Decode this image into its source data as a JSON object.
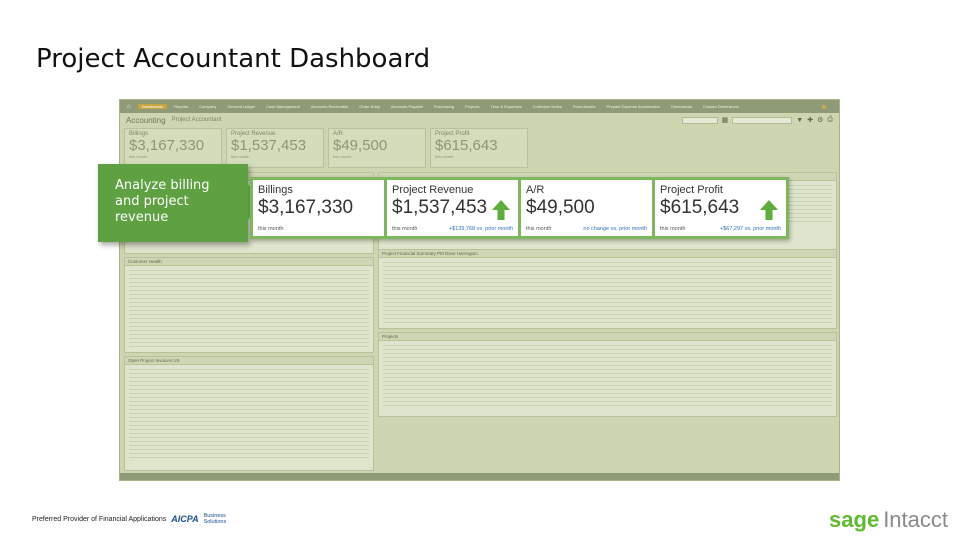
{
  "slide": {
    "title": "Project Accountant Dashboard"
  },
  "nav": {
    "home_icon": "home-icon",
    "items": [
      "Dashboards",
      "Reports",
      "Company",
      "General Ledger",
      "Cash Management",
      "Accounts Receivable",
      "Order Entry",
      "Accounts Payable",
      "Purchasing",
      "Projects",
      "Time & Expenses",
      "Collection Notes",
      "Fixed Assets",
      "Prepaid Expense Amortization",
      "Dimensions",
      "Custom Dimensions"
    ],
    "active_index": 0
  },
  "header": {
    "app": "Accounting",
    "role": "Project Accountant"
  },
  "bg_tiles": [
    {
      "label": "Billings",
      "value": "$3,167,330",
      "sub": "this month"
    },
    {
      "label": "Project Revenue",
      "value": "$1,537,453",
      "sub": "this month"
    },
    {
      "label": "A/R",
      "value": "$49,500",
      "sub": "this month"
    },
    {
      "label": "Project Profit",
      "value": "$615,643",
      "sub": "this month"
    }
  ],
  "panels": {
    "billing": "Project Prevenue Billing",
    "health": "Customer Health",
    "invoices": "Open Project Invoices US",
    "summary": "Project Financial Summary PM Dave Harrington",
    "projects": "Projects"
  },
  "callout": {
    "text": "Analyze billing and project revenue"
  },
  "cards": [
    {
      "label": "Billings",
      "value": "$3,167,330",
      "sub": "this month",
      "note": "",
      "arrow": false
    },
    {
      "label": "Project Revenue",
      "value": "$1,537,453",
      "sub": "this month",
      "note": "+$139,768 vs. prior month",
      "arrow": true
    },
    {
      "label": "A/R",
      "value": "$49,500",
      "sub": "this month",
      "note": "no change vs. prior month",
      "arrow": false
    },
    {
      "label": "Project Profit",
      "value": "$615,643",
      "sub": "this month",
      "note": "+$67,297 vs. prior month",
      "arrow": true
    }
  ],
  "footer": {
    "preferred": "Preferred Provider of Financial Applications",
    "aicpa": "AICPA",
    "business": "Business",
    "solutions": "Solutions",
    "brand_sage": "sage",
    "brand_intacct": "Intacct"
  },
  "colors": {
    "accent_green": "#5fa043",
    "arrow_green": "#5dae3a",
    "note_blue": "#2e6fbf"
  }
}
